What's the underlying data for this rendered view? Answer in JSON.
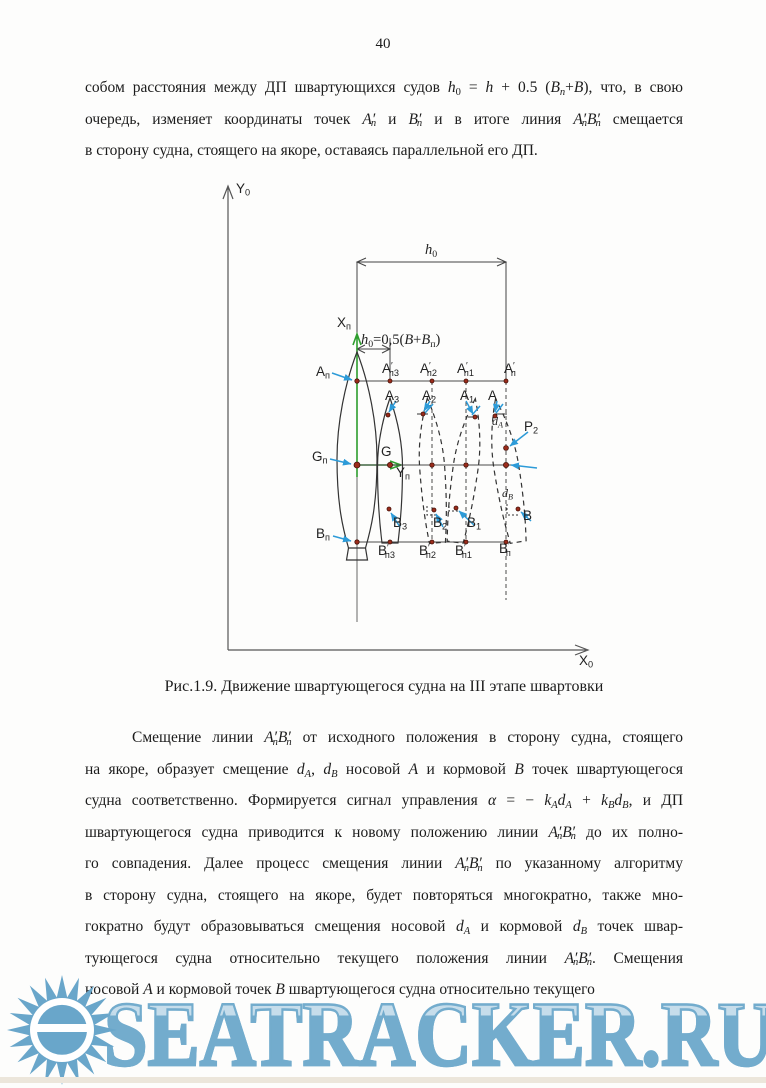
{
  "page": {
    "number": "40"
  },
  "body": {
    "p1": {
      "lines": [
        [
          {
            "t": "собом расстояния между ДП швартующихся судов "
          },
          {
            "t": "h",
            "i": 1
          },
          {
            "t": "0",
            "sb": 1
          },
          {
            "t": " = "
          },
          {
            "t": "h",
            "i": 1
          },
          {
            "t": " + 0.5 ("
          },
          {
            "t": "B",
            "i": 1
          },
          {
            "t": "n",
            "i": 1,
            "sb": 1
          },
          {
            "t": "+"
          },
          {
            "t": "B",
            "i": 1
          },
          {
            "t": "), что, в свою"
          }
        ],
        [
          {
            "t": "очередь, изменяет координаты точек "
          },
          {
            "t": "A′",
            "i": 1
          },
          {
            "t": "n",
            "i": 1,
            "sb": 1,
            "st": 1
          },
          {
            "t": " и "
          },
          {
            "t": "B′",
            "i": 1
          },
          {
            "t": "n",
            "i": 1,
            "sb": 1,
            "st": 1
          },
          {
            "t": " и в итоге линия "
          },
          {
            "t": "A′",
            "i": 1
          },
          {
            "t": "n",
            "i": 1,
            "sb": 1,
            "st": 1
          },
          {
            "t": "B′",
            "i": 1
          },
          {
            "t": "n",
            "i": 1,
            "sb": 1,
            "st": 1
          },
          {
            "t": " смещается"
          }
        ],
        [
          {
            "t": "в сторону судна, стоящего на якоре, оставаясь параллельной его ДП."
          }
        ]
      ]
    },
    "caption": "Рис.1.9. Движение швартующегося судна на III этапе швартовки",
    "p2": {
      "lines": [
        [
          {
            "t": "Смещение линии "
          },
          {
            "t": "A′",
            "i": 1
          },
          {
            "t": "n",
            "i": 1,
            "sb": 1,
            "st": 1
          },
          {
            "t": "B′",
            "i": 1
          },
          {
            "t": "n",
            "i": 1,
            "sb": 1,
            "st": 1
          },
          {
            "t": " от исходного положения в сторону судна, стоящего"
          }
        ],
        [
          {
            "t": "на якоре, образует смещение "
          },
          {
            "t": "d",
            "i": 1
          },
          {
            "t": "A",
            "i": 1,
            "sb": 1
          },
          {
            "t": ", "
          },
          {
            "t": "d",
            "i": 1
          },
          {
            "t": "B",
            "i": 1,
            "sb": 1
          },
          {
            "t": " носовой "
          },
          {
            "t": "A",
            "i": 1
          },
          {
            "t": " и кормовой "
          },
          {
            "t": "B",
            "i": 1
          },
          {
            "t": " точек швартующегося"
          }
        ],
        [
          {
            "t": "судна соответственно. Формируется сигнал управления "
          },
          {
            "t": "α",
            "i": 1
          },
          {
            "t": " = − "
          },
          {
            "t": "k",
            "i": 1
          },
          {
            "t": "A",
            "i": 1,
            "sb": 1
          },
          {
            "t": "d",
            "i": 1
          },
          {
            "t": "A",
            "i": 1,
            "sb": 1
          },
          {
            "t": " + "
          },
          {
            "t": "k",
            "i": 1
          },
          {
            "t": "B",
            "i": 1,
            "sb": 1
          },
          {
            "t": "d",
            "i": 1
          },
          {
            "t": "B",
            "i": 1,
            "sb": 1
          },
          {
            "t": ", и ДП"
          }
        ],
        [
          {
            "t": "швартующегося судна приводится к новому положению линии "
          },
          {
            "t": "A′",
            "i": 1
          },
          {
            "t": "n",
            "i": 1,
            "sb": 1,
            "st": 1
          },
          {
            "t": "B′",
            "i": 1
          },
          {
            "t": "n",
            "i": 1,
            "sb": 1,
            "st": 1
          },
          {
            "t": " до их полно-"
          }
        ],
        [
          {
            "t": "го совпадения. Далее процесс смещения линии "
          },
          {
            "t": "A′",
            "i": 1
          },
          {
            "t": "n",
            "i": 1,
            "sb": 1,
            "st": 1
          },
          {
            "t": "B′",
            "i": 1
          },
          {
            "t": "n",
            "i": 1,
            "sb": 1,
            "st": 1
          },
          {
            "t": " по указанному алгоритму"
          }
        ],
        [
          {
            "t": "в сторону судна, стоящего на якоре, будет повторяться многократно, также мно-"
          }
        ],
        [
          {
            "t": "гократно будут образовываться смещения носовой "
          },
          {
            "t": "d",
            "i": 1
          },
          {
            "t": "A",
            "i": 1,
            "sb": 1
          },
          {
            "t": " и кормовой "
          },
          {
            "t": "d",
            "i": 1
          },
          {
            "t": "B",
            "i": 1,
            "sb": 1
          },
          {
            "t": " точек швар-"
          }
        ],
        [
          {
            "t": "тующегося судна относительно текущего положения линии "
          },
          {
            "t": "A′",
            "i": 1
          },
          {
            "t": "n",
            "i": 1,
            "sb": 1,
            "st": 1
          },
          {
            "t": "B′",
            "i": 1
          },
          {
            "t": "n",
            "i": 1,
            "sb": 1,
            "st": 1
          },
          {
            "t": ". Смещения"
          }
        ],
        [
          {
            "t": "носовой "
          },
          {
            "t": "A",
            "i": 1
          },
          {
            "t": " и кормовой точек "
          },
          {
            "t": "B",
            "i": 1
          },
          {
            "t": " швартующегося судна относительно текущего"
          }
        ]
      ]
    }
  },
  "figure": {
    "colors": {
      "axis_green": "#2e9e2e",
      "annotation_blue": "#2d9bd8",
      "point_marker": "#9b2c1b",
      "point_marker_edge": "#45120a",
      "line_gray": "#4a4a4a",
      "axis_gray": "#555555"
    },
    "labels": {
      "y_axis": [
        {
          "t": "Y"
        },
        {
          "t": "0",
          "sb": 1
        }
      ],
      "x_axis": [
        {
          "t": "X"
        },
        {
          "t": "0",
          "sb": 1
        }
      ],
      "xn_axis": [
        {
          "t": "X"
        },
        {
          "t": "п",
          "sb": 1
        }
      ],
      "yn_axis": [
        {
          "t": "Y"
        },
        {
          "t": "п",
          "sb": 1
        }
      ],
      "h0_top": [
        {
          "t": "h",
          "i": 1
        },
        {
          "t": "0",
          "sb": 1
        }
      ],
      "h0_formula": [
        {
          "t": "h",
          "i": 1
        },
        {
          "t": "0",
          "sb": 1
        },
        {
          "t": "=0,5("
        },
        {
          "t": "B",
          "i": 1
        },
        {
          "t": "+"
        },
        {
          "t": "B",
          "i": 1
        },
        {
          "t": "п",
          "sb": 1
        },
        {
          "t": ")"
        }
      ],
      "a_n": [
        {
          "t": "A"
        },
        {
          "t": "п",
          "sb": 1
        }
      ],
      "apn3": [
        {
          "t": "A"
        },
        {
          "t": "′",
          "sp": 1
        },
        {
          "t": "п3",
          "sb": 1,
          "st": 1
        }
      ],
      "apn2": [
        {
          "t": "A"
        },
        {
          "t": "′",
          "sp": 1
        },
        {
          "t": "п2",
          "sb": 1,
          "st": 1
        }
      ],
      "apn1": [
        {
          "t": "A"
        },
        {
          "t": "′",
          "sp": 1
        },
        {
          "t": "п1",
          "sb": 1,
          "st": 1
        }
      ],
      "apn": [
        {
          "t": "A"
        },
        {
          "t": "′",
          "sp": 1
        },
        {
          "t": "п",
          "sb": 1,
          "st": 1
        }
      ],
      "a3": [
        {
          "t": "A"
        },
        {
          "t": "3",
          "sb": 1
        }
      ],
      "a2": [
        {
          "t": "A"
        },
        {
          "t": "2",
          "sb": 1
        }
      ],
      "a1": [
        {
          "t": "A"
        },
        {
          "t": "1",
          "sb": 1
        }
      ],
      "a": [
        {
          "t": "A"
        }
      ],
      "d_a": [
        {
          "t": "d",
          "i": 1
        },
        {
          "t": "A",
          "i": 1,
          "sb": 1
        }
      ],
      "p2_point": [
        {
          "t": "P"
        },
        {
          "t": "2",
          "sb": 1
        }
      ],
      "g_n": [
        {
          "t": "G"
        },
        {
          "t": "п",
          "sb": 1
        }
      ],
      "g": [
        {
          "t": "G"
        }
      ],
      "d_b": [
        {
          "t": "d",
          "i": 1
        },
        {
          "t": "B",
          "i": 1,
          "sb": 1
        }
      ],
      "b": [
        {
          "t": "B"
        }
      ],
      "b3": [
        {
          "t": "B"
        },
        {
          "t": "3",
          "sb": 1
        }
      ],
      "b2": [
        {
          "t": "B"
        },
        {
          "t": "2",
          "sb": 1
        }
      ],
      "b1": [
        {
          "t": "B"
        },
        {
          "t": "1",
          "sb": 1
        }
      ],
      "b_n": [
        {
          "t": "B"
        },
        {
          "t": "п",
          "sb": 1
        }
      ],
      "bpn3": [
        {
          "t": "B"
        },
        {
          "t": "′",
          "sp": 1
        },
        {
          "t": "п3",
          "sb": 1,
          "st": 1
        }
      ],
      "bpn2": [
        {
          "t": "B"
        },
        {
          "t": "′",
          "sp": 1
        },
        {
          "t": "п2",
          "sb": 1,
          "st": 1
        }
      ],
      "bpn1": [
        {
          "t": "B"
        },
        {
          "t": "′",
          "sp": 1
        },
        {
          "t": "п1",
          "sb": 1,
          "st": 1
        }
      ],
      "bpn": [
        {
          "t": "B"
        },
        {
          "t": "′",
          "sp": 1
        },
        {
          "t": "п",
          "sb": 1,
          "st": 1
        }
      ]
    }
  },
  "watermark": {
    "text": "SEATRACKER.RU",
    "color": "#69a6ca",
    "logo": "sun-icon"
  }
}
